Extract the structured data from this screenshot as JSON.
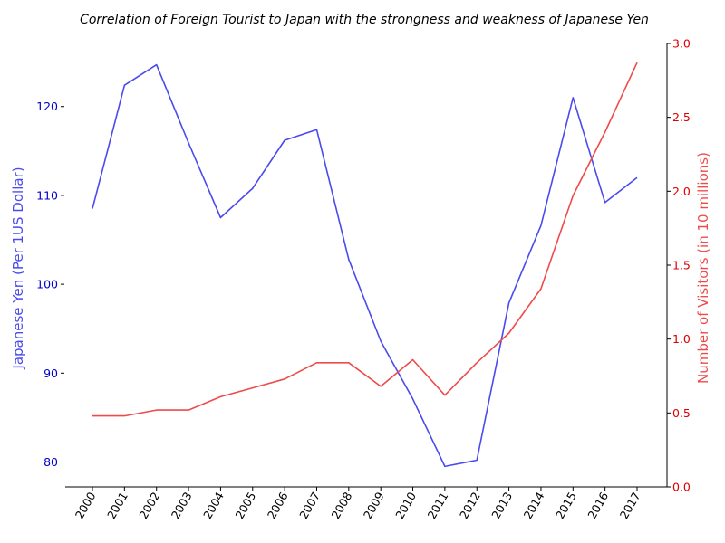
{
  "chart_data": {
    "type": "line",
    "title": "Correlation of Foreign Tourist to Japan with the strongness and weakness of Japanese Yen",
    "x": [
      "2000",
      "2001",
      "2002",
      "2003",
      "2004",
      "2005",
      "2006",
      "2007",
      "2008",
      "2009",
      "2010",
      "2011",
      "2012",
      "2013",
      "2014",
      "2015",
      "2016",
      "2017"
    ],
    "series": [
      {
        "axis": "left",
        "color": "#4a4aee",
        "values": [
          108.5,
          122.4,
          124.7,
          115.9,
          107.5,
          110.8,
          116.2,
          117.4,
          102.8,
          93.6,
          87.1,
          79.5,
          80.2,
          97.9,
          106.6,
          121.0,
          109.2,
          112.0
        ]
      },
      {
        "axis": "right",
        "color": "#ef4a4a",
        "values": [
          0.48,
          0.48,
          0.52,
          0.52,
          0.61,
          0.67,
          0.73,
          0.84,
          0.84,
          0.68,
          0.86,
          0.62,
          0.84,
          1.04,
          1.34,
          1.97,
          2.4,
          2.87
        ]
      }
    ],
    "ylabel": "Japanese Yen (Per 1US Dollar)",
    "ylabel_color": "#4a4aee",
    "y2label": "Number of Visitors (in 10 millions)",
    "y2label_color": "#ef4a4a",
    "yticks": [
      80,
      90,
      100,
      110,
      120
    ],
    "yticks_color": "#0000cc",
    "y2ticks": [
      "0.0",
      "0.5",
      "1.0",
      "1.5",
      "2.0",
      "2.5",
      "3.0"
    ],
    "y2ticks_color": "#dd0000",
    "ylim": [
      77.2,
      127.1
    ],
    "y2lim": [
      0,
      3.0
    ],
    "grid": false,
    "legend": "none"
  }
}
